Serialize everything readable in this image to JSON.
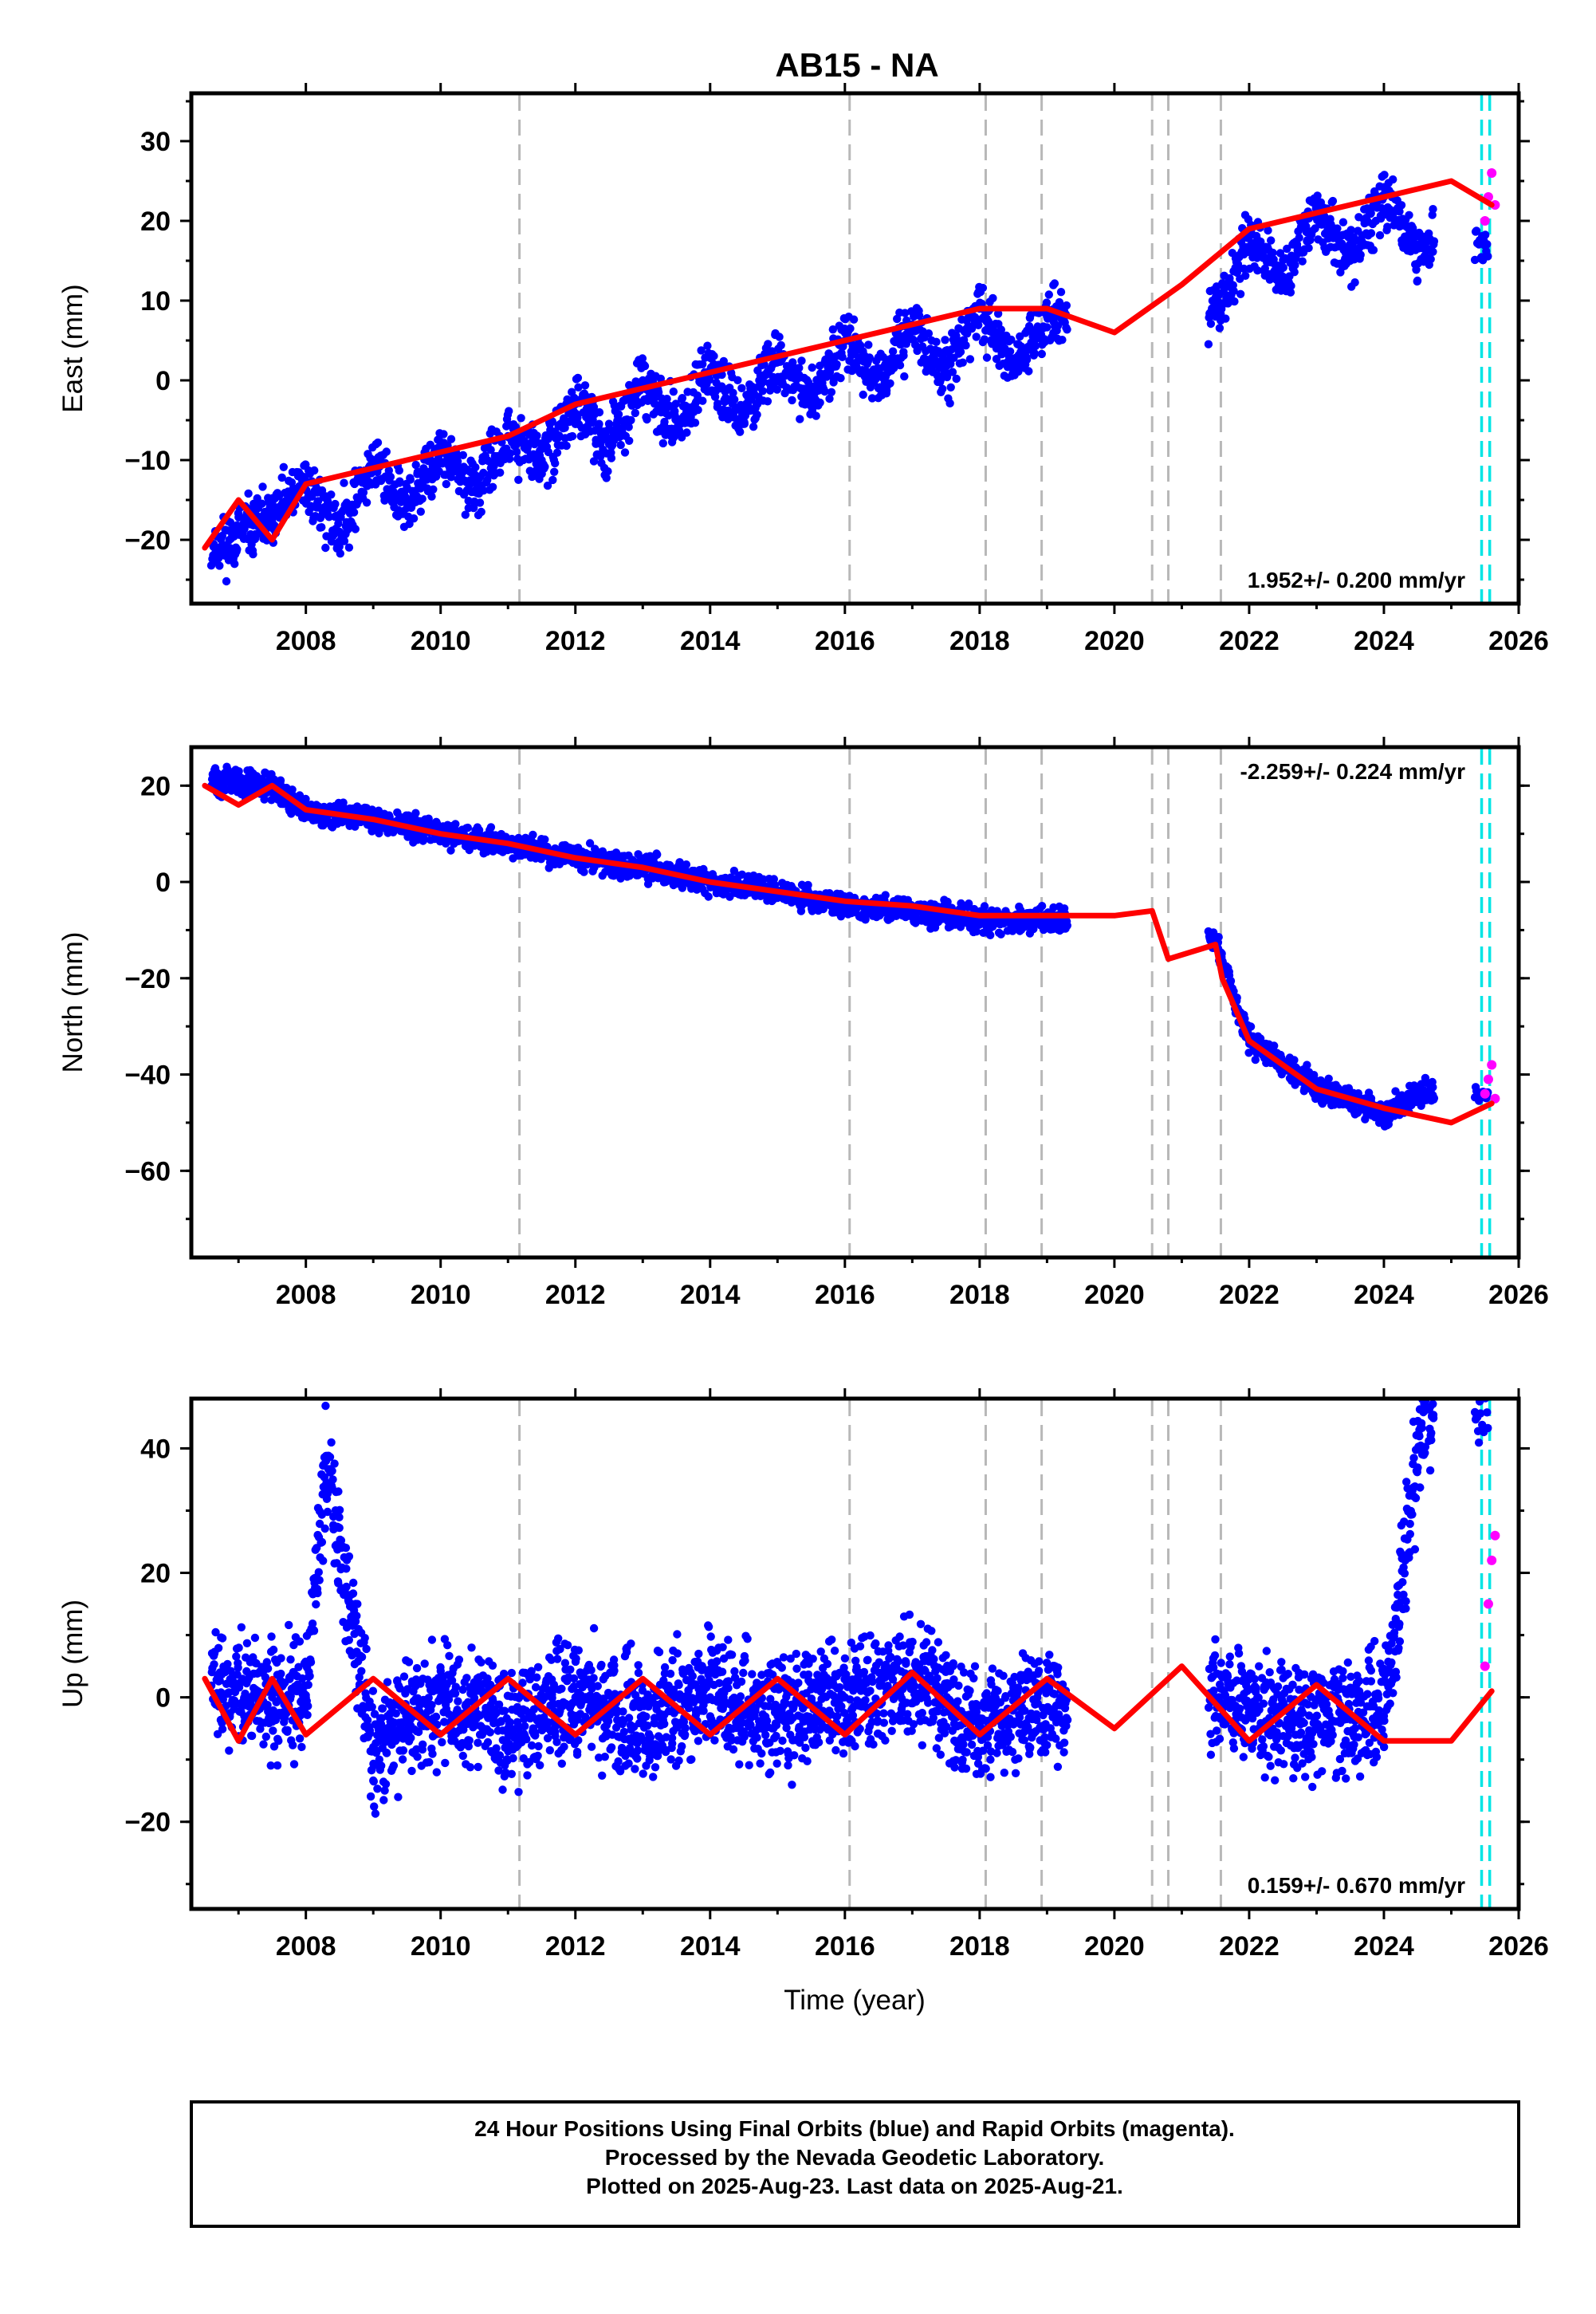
{
  "title": "AB15 - NA",
  "x_axis": {
    "label": "Time (year)",
    "range": [
      2006.3,
      2026.0
    ],
    "ticks": [
      2008,
      2010,
      2012,
      2014,
      2016,
      2018,
      2020,
      2022,
      2024,
      2026
    ]
  },
  "event_lines": {
    "gray_dashed": [
      2011.17,
      2016.07,
      2018.09,
      2018.92,
      2020.56,
      2020.8,
      2021.58
    ],
    "cyan_dashed": [
      2025.45,
      2025.57
    ]
  },
  "colors": {
    "final_orbits": "#0000ff",
    "rapid_orbits": "#ff00ff",
    "model": "#ff0000",
    "gray_line": "#b8b8b8",
    "cyan_line": "#00e5e5"
  },
  "chart_data": [
    {
      "type": "scatter",
      "component": "east",
      "ylabel": "East (mm)",
      "ylim": [
        -28,
        36
      ],
      "yticks": [
        -20,
        -10,
        0,
        10,
        20,
        30
      ],
      "rate_label": "1.952+/- 0.200 mm/yr",
      "rate_position": "bottom-right",
      "series": [
        {
          "name": "Final Orbits (blue)",
          "x": [
            2006.7,
            2007.5,
            2008.0,
            2008.5,
            2009.0,
            2009.5,
            2010.0,
            2010.5,
            2011.0,
            2011.5,
            2012.0,
            2012.5,
            2013.0,
            2013.5,
            2014.0,
            2014.5,
            2015.0,
            2015.5,
            2016.0,
            2016.5,
            2017.0,
            2017.5,
            2018.0,
            2018.5,
            2019.0,
            2021.5,
            2022.0,
            2022.5,
            2023.0,
            2023.5,
            2024.0,
            2024.5
          ],
          "y": [
            -21,
            -17,
            -13,
            -19,
            -10,
            -16,
            -9,
            -14,
            -7,
            -10,
            -3,
            -8,
            0,
            -6,
            1,
            -4,
            3,
            -3,
            6,
            -1,
            7,
            1,
            9,
            2,
            8,
            8,
            18,
            13,
            21,
            15,
            23,
            17
          ]
        },
        {
          "name": "Rapid Orbits (magenta)",
          "x": [
            2025.5,
            2025.55,
            2025.6,
            2025.65
          ],
          "y": [
            20,
            23,
            26,
            22
          ]
        },
        {
          "name": "Model",
          "x": [
            2006.5,
            2007.0,
            2007.5,
            2008.0,
            2009.0,
            2010.0,
            2011.0,
            2012.0,
            2013.0,
            2014.0,
            2015.0,
            2016.0,
            2017.0,
            2018.0,
            2019.0,
            2020.0,
            2021.0,
            2022.0,
            2023.0,
            2024.0,
            2025.0,
            2025.6
          ],
          "y": [
            -21,
            -15,
            -20,
            -13,
            -11,
            -9,
            -7,
            -3,
            -1,
            1,
            3,
            5,
            7,
            9,
            9,
            6,
            12,
            19,
            21,
            23,
            25,
            22
          ]
        }
      ]
    },
    {
      "type": "scatter",
      "component": "north",
      "ylabel": "North (mm)",
      "ylim": [
        -78,
        28
      ],
      "yticks": [
        -60,
        -40,
        -20,
        0,
        20
      ],
      "rate_label": "-2.259+/- 0.224 mm/yr",
      "rate_position": "top-right",
      "series": [
        {
          "name": "Final Orbits (blue)",
          "x": [
            2006.7,
            2007.5,
            2008.0,
            2009.0,
            2010.0,
            2011.0,
            2012.0,
            2013.0,
            2014.0,
            2015.0,
            2016.0,
            2017.0,
            2018.0,
            2019.0,
            2021.5,
            2022.0,
            2022.5,
            2023.0,
            2024.0,
            2024.5
          ],
          "y": [
            21,
            20,
            15,
            13,
            10,
            8,
            5,
            3,
            0,
            -2,
            -5,
            -6,
            -8,
            -8,
            -12,
            -33,
            -38,
            -43,
            -48,
            -44
          ]
        },
        {
          "name": "Rapid Orbits (magenta)",
          "x": [
            2025.5,
            2025.55,
            2025.6,
            2025.65
          ],
          "y": [
            -44,
            -41,
            -38,
            -45
          ]
        },
        {
          "name": "Model",
          "x": [
            2006.5,
            2007.0,
            2007.5,
            2008.0,
            2009.0,
            2010.0,
            2011.0,
            2012.0,
            2013.0,
            2014.0,
            2015.0,
            2016.0,
            2017.0,
            2018.0,
            2019.0,
            2020.0,
            2020.56,
            2020.8,
            2021.5,
            2021.6,
            2022.0,
            2023.0,
            2024.0,
            2025.0,
            2025.6
          ],
          "y": [
            20,
            16,
            20,
            15,
            13,
            10,
            8,
            5,
            3,
            0,
            -2,
            -4,
            -5,
            -7,
            -7,
            -7,
            -6,
            -16,
            -13,
            -20,
            -33,
            -43,
            -47,
            -50,
            -46
          ]
        }
      ]
    },
    {
      "type": "scatter",
      "component": "up",
      "ylabel": "Up (mm)",
      "ylim": [
        -34,
        48
      ],
      "yticks": [
        -20,
        0,
        20,
        40
      ],
      "rate_label": "0.159+/- 0.670 mm/yr",
      "rate_position": "bottom-right",
      "series": [
        {
          "name": "Final Orbits (blue)",
          "x": [
            2006.7,
            2007.5,
            2008.0,
            2008.3,
            2009.0,
            2010.0,
            2011.0,
            2012.0,
            2013.0,
            2014.0,
            2015.0,
            2016.0,
            2017.0,
            2018.0,
            2019.0,
            2021.5,
            2022.0,
            2023.0,
            2024.0,
            2024.6
          ],
          "y": [
            3,
            0,
            0,
            38,
            -8,
            0,
            -5,
            0,
            -4,
            0,
            -3,
            0,
            3,
            -5,
            -2,
            0,
            -3,
            -3,
            -3,
            46
          ]
        },
        {
          "name": "Rapid Orbits (magenta)",
          "x": [
            2025.5,
            2025.55,
            2025.6,
            2025.65
          ],
          "y": [
            5,
            15,
            22,
            26
          ]
        },
        {
          "name": "Model",
          "x": [
            2006.5,
            2007.0,
            2007.5,
            2008.0,
            2009.0,
            2010.0,
            2011.0,
            2012.0,
            2013.0,
            2014.0,
            2015.0,
            2016.0,
            2017.0,
            2018.0,
            2019.0,
            2020.0,
            2021.0,
            2022.0,
            2023.0,
            2024.0,
            2025.0,
            2025.6
          ],
          "y": [
            3,
            -7,
            3,
            -6,
            3,
            -6,
            3,
            -6,
            3,
            -6,
            3,
            -6,
            4,
            -6,
            3,
            -5,
            5,
            -7,
            2,
            -7,
            -7,
            1
          ]
        }
      ]
    }
  ],
  "footer": {
    "line1": "24 Hour Positions Using Final Orbits (blue) and Rapid Orbits (magenta).",
    "line2": "Processed by the Nevada Geodetic Laboratory.",
    "line3": "Plotted on 2025-Aug-23. Last data on 2025-Aug-21."
  }
}
